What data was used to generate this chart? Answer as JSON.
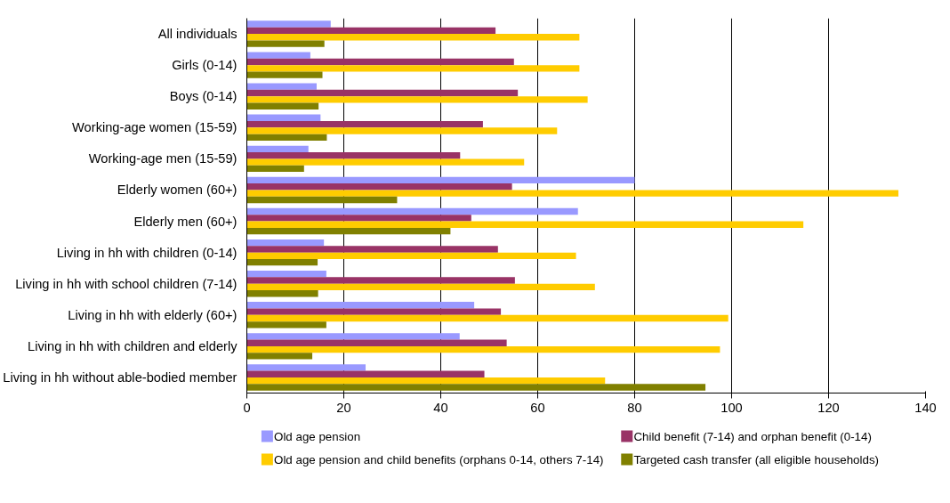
{
  "chart_data": {
    "type": "bar",
    "orientation": "horizontal",
    "categories": [
      "All individuals",
      "Girls (0-14)",
      "Boys (0-14)",
      "Working-age women (15-59)",
      "Working-age men (15-59)",
      "Elderly women (60+)",
      "Elderly men (60+)",
      "Living in hh with children (0-14)",
      "Living in hh with school children (7-14)",
      "Living in hh with elderly (60+)",
      "Living in hh with children and elderly",
      "Living in hh without able-bodied member"
    ],
    "series": [
      {
        "name": "Old age pension",
        "color": "#9999ff",
        "values": [
          17.3,
          13.1,
          14.4,
          15.2,
          12.7,
          80.0,
          68.3,
          15.9,
          16.4,
          46.9,
          43.9,
          24.5
        ]
      },
      {
        "name": "Child benefit (7-14) and orphan benefit (0-14)",
        "color": "#993366",
        "values": [
          51.3,
          55.1,
          55.9,
          48.7,
          44.0,
          54.7,
          46.3,
          51.8,
          55.3,
          52.4,
          53.6,
          49.0
        ]
      },
      {
        "name": "Old age pension and child benefits (orphans 0-14, others 7-14)",
        "color": "#ffcc00",
        "values": [
          68.6,
          68.6,
          70.3,
          64.0,
          57.2,
          134.4,
          114.8,
          67.9,
          71.8,
          99.3,
          97.6,
          73.9
        ]
      },
      {
        "name": "Targeted cash transfer (all eligible households)",
        "color": "#808000",
        "values": [
          16.0,
          15.6,
          14.8,
          16.5,
          11.8,
          31.0,
          42.0,
          14.6,
          14.7,
          16.4,
          13.5,
          94.6
        ]
      }
    ],
    "xlim": [
      0,
      140
    ],
    "xticks": [
      0,
      20,
      40,
      60,
      80,
      100,
      120,
      140
    ],
    "grid": "x",
    "legend": "bottom"
  }
}
